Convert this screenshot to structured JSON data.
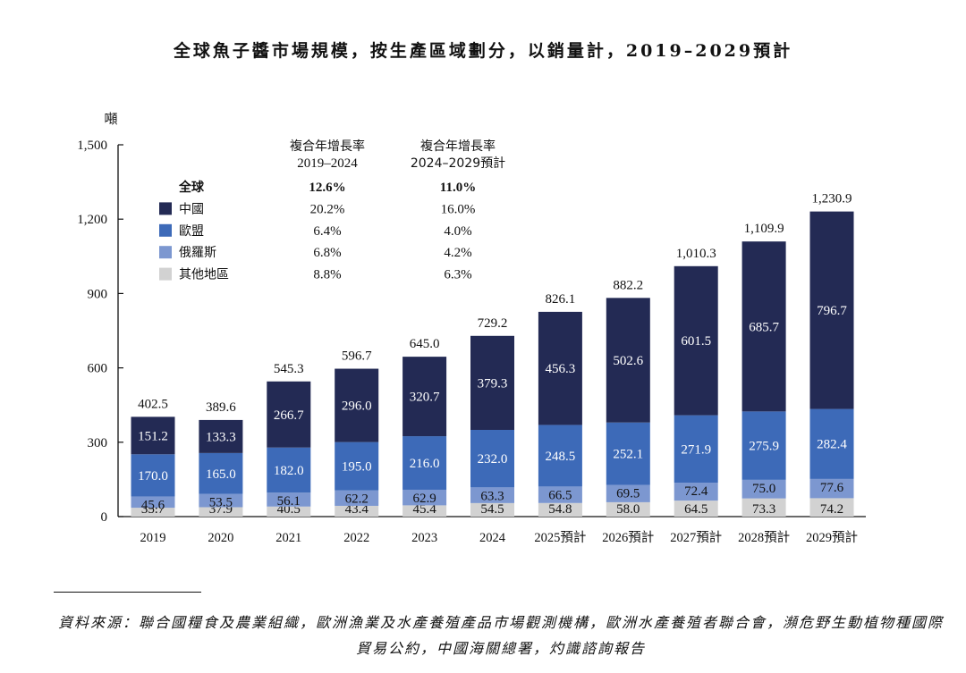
{
  "title": "全球魚子醬市場規模，按生產區域劃分，以銷量計，2019–2029預計",
  "unit": "噸",
  "source": "資料來源：聯合國糧食及農業組織，歐洲漁業及水產養殖產品市場觀測機構，歐洲水產養殖者聯合會，瀕危野生動植物種國際貿易公約，中國海關總署，灼識諮詢報告",
  "legend": {
    "cagr_header_1": "複合年增長率",
    "period_1": "2019–2024",
    "cagr_header_2": "複合年增長率",
    "period_2": "2024–2029預計",
    "rows": [
      {
        "label": "全球",
        "cagr_1": "12.6%",
        "cagr_2": "11.0%",
        "bold": true,
        "color": ""
      },
      {
        "label": "中國",
        "cagr_1": "20.2%",
        "cagr_2": "16.0%",
        "bold": false,
        "color": "#232a54"
      },
      {
        "label": "歐盟",
        "cagr_1": "6.4%",
        "cagr_2": "4.0%",
        "bold": false,
        "color": "#3d6ab8"
      },
      {
        "label": "俄羅斯",
        "cagr_1": "6.8%",
        "cagr_2": "4.2%",
        "bold": false,
        "color": "#7c97d0"
      },
      {
        "label": "其他地區",
        "cagr_1": "8.8%",
        "cagr_2": "6.3%",
        "bold": false,
        "color": "#d2d2d2"
      }
    ]
  },
  "chart_data": {
    "type": "bar",
    "stacked": true,
    "ylim": [
      0,
      1500
    ],
    "yticks": [
      0,
      300,
      600,
      900,
      1200,
      1500
    ],
    "ytick_labels": [
      "0",
      "300",
      "600",
      "900",
      "1,200",
      "1,500"
    ],
    "categories": [
      "2019",
      "2020",
      "2021",
      "2022",
      "2023",
      "2024",
      "2025預計",
      "2026預計",
      "2027預計",
      "2028預計",
      "2029預計"
    ],
    "series": [
      {
        "name": "其他地區",
        "color": "#d2d2d2",
        "values": [
          35.7,
          37.9,
          40.5,
          43.4,
          45.4,
          54.5,
          54.8,
          58.0,
          64.5,
          73.3,
          74.2
        ]
      },
      {
        "name": "俄羅斯",
        "color": "#7c97d0",
        "values": [
          45.6,
          53.5,
          56.1,
          62.2,
          62.9,
          63.3,
          66.5,
          69.5,
          72.4,
          75.0,
          77.6
        ]
      },
      {
        "name": "歐盟",
        "color": "#3d6ab8",
        "values": [
          170.0,
          165.0,
          182.0,
          195.0,
          216.0,
          232.0,
          248.5,
          252.1,
          271.9,
          275.9,
          282.4
        ]
      },
      {
        "name": "中國",
        "color": "#232a54",
        "values": [
          151.2,
          133.3,
          266.7,
          296.0,
          320.7,
          379.3,
          456.3,
          502.6,
          601.5,
          685.7,
          796.7
        ]
      }
    ],
    "totals": [
      "402.5",
      "389.6",
      "545.3",
      "596.7",
      "645.0",
      "729.2",
      "826.1",
      "882.2",
      "1,010.3",
      "1,109.9",
      "1,230.9"
    ]
  }
}
